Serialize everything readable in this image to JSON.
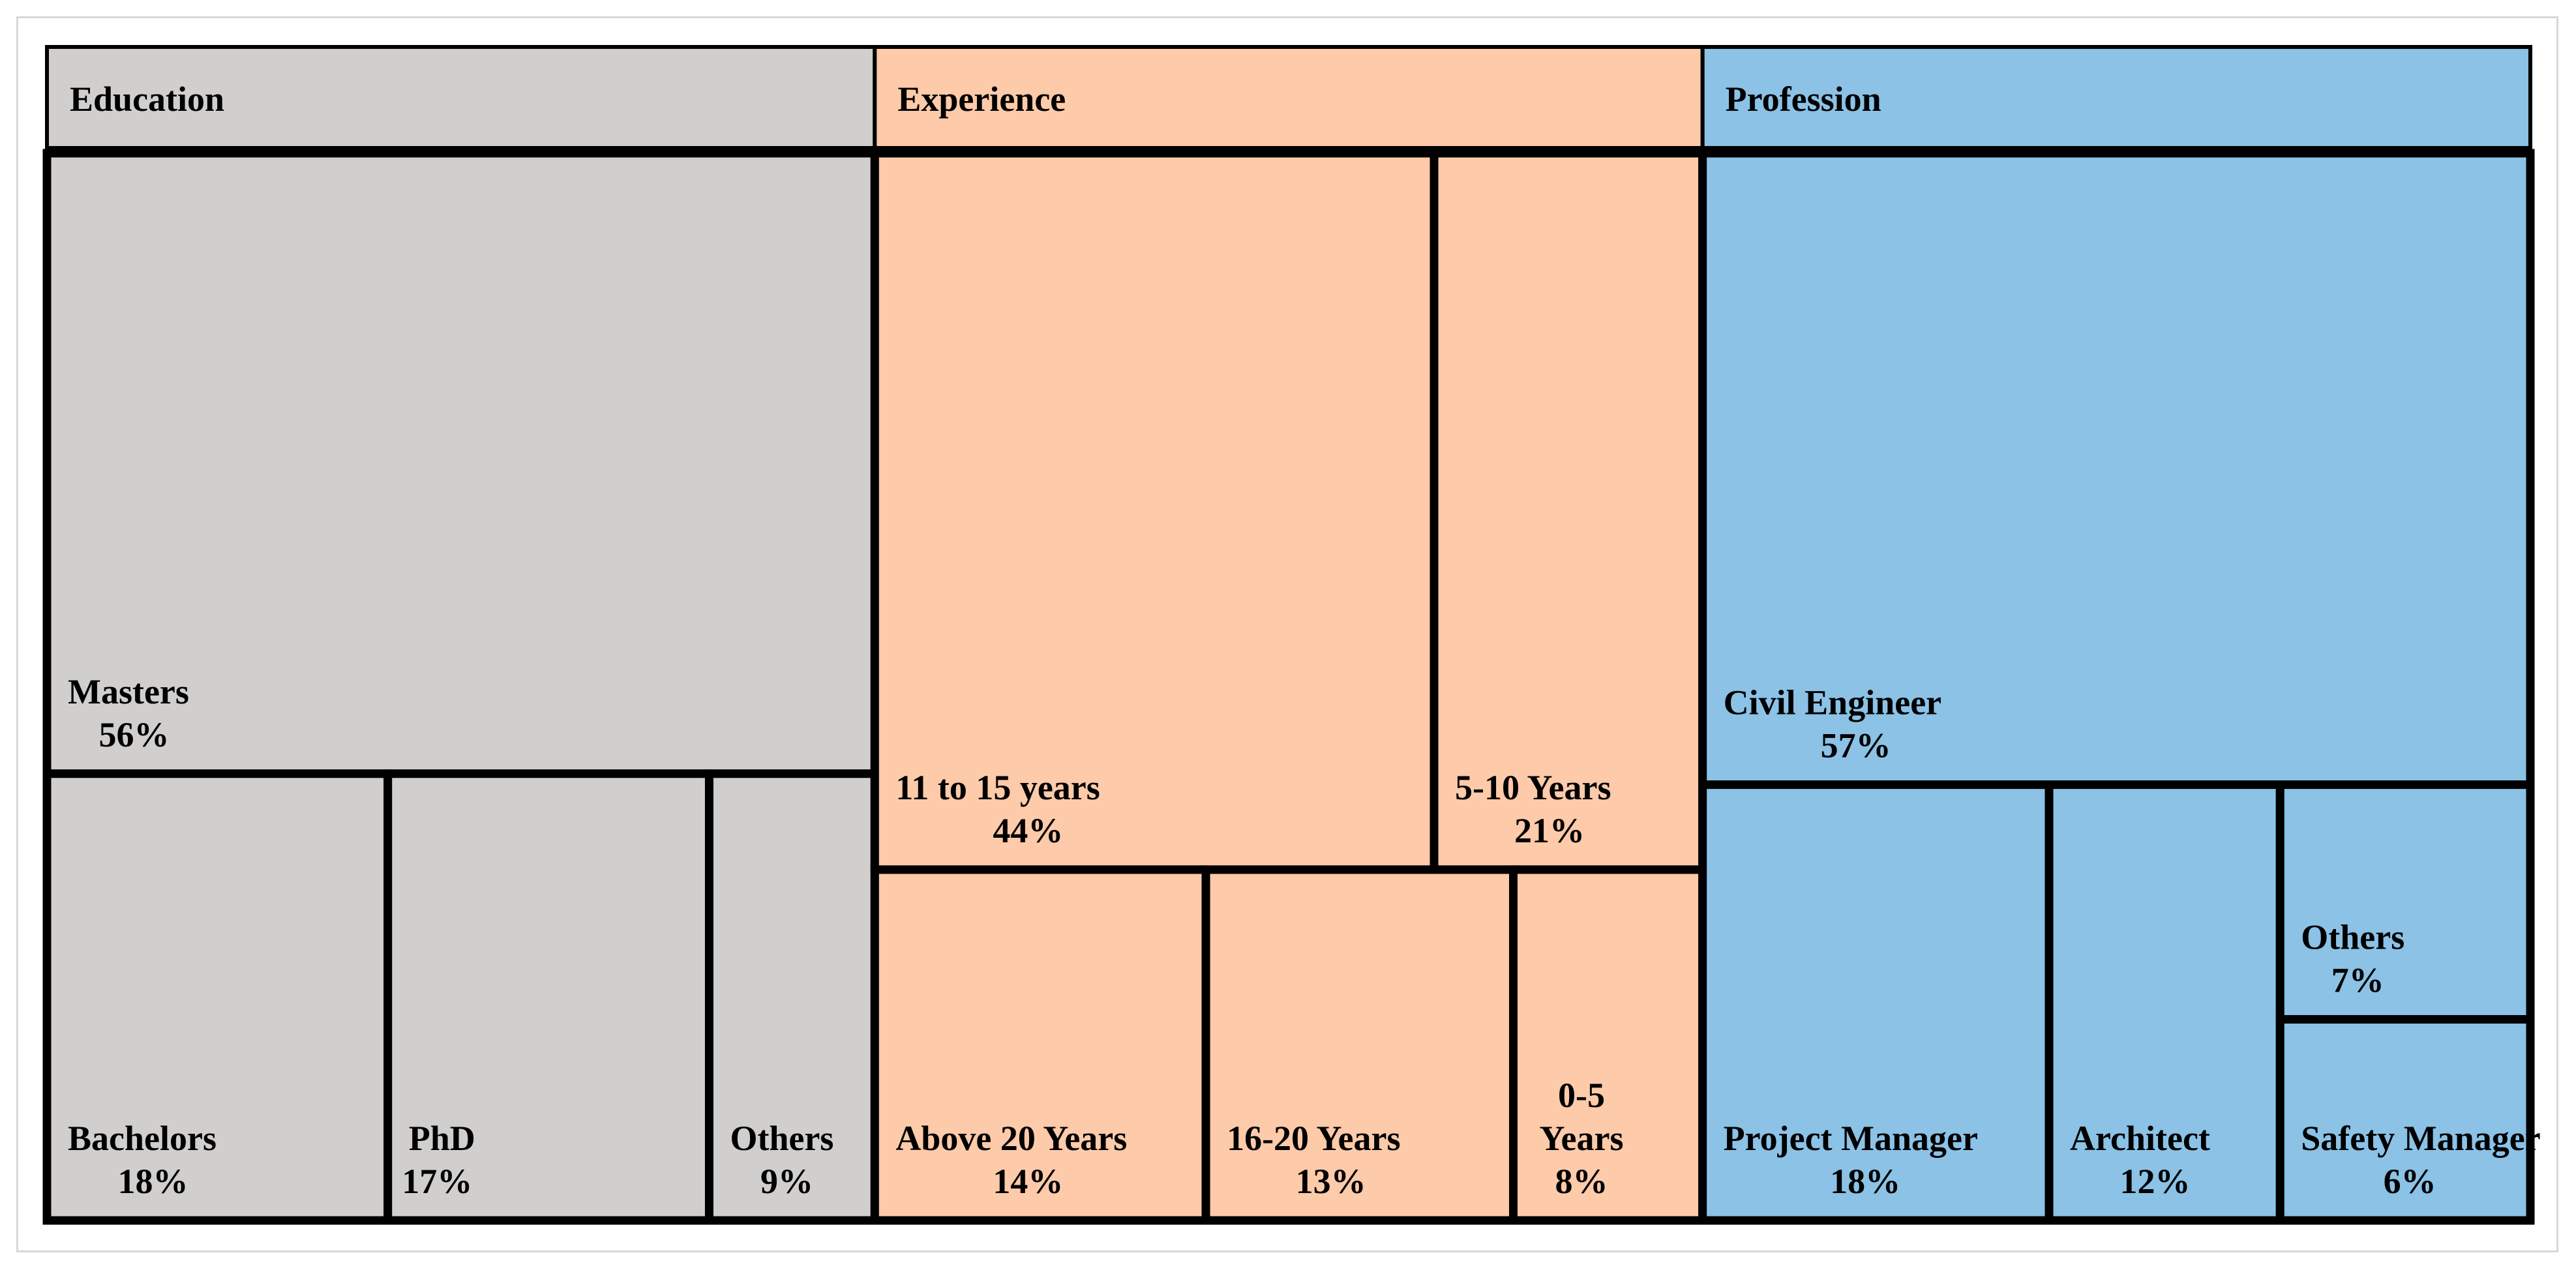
{
  "chart_data": {
    "type": "treemap",
    "unit": "%",
    "groups": [
      {
        "name": "Education",
        "color": "#d0cfce",
        "items": [
          {
            "label": "Masters",
            "value": 56
          },
          {
            "label": "Bachelors",
            "value": 18
          },
          {
            "label": "PhD",
            "value": 17
          },
          {
            "label": "Others",
            "value": 9
          }
        ]
      },
      {
        "name": "Experience",
        "color": "#fdcaaa",
        "items": [
          {
            "label": "11 to 15 years",
            "value": 44
          },
          {
            "label": "5-10 Years",
            "value": 21
          },
          {
            "label": "Above 20 Years",
            "value": 14
          },
          {
            "label": "16-20 Years",
            "value": 13
          },
          {
            "label": "0-5 Years",
            "value": 8
          }
        ]
      },
      {
        "name": "Profession",
        "color": "#8bc2e6",
        "items": [
          {
            "label": "Civil Engineer",
            "value": 57
          },
          {
            "label": "Project Manager",
            "value": 18
          },
          {
            "label": "Architect",
            "value": 12
          },
          {
            "label": "Others",
            "value": 7
          },
          {
            "label": "Safety Manager",
            "value": 6
          }
        ]
      }
    ]
  }
}
